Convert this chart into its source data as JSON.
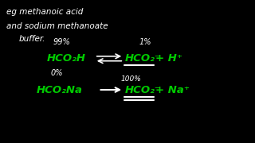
{
  "background_color": "#000000",
  "text_color_white": "#ffffff",
  "text_color_green": "#00cc00",
  "title_line1": "eg methanoic acid",
  "title_line2": "and sodium methanoate",
  "title_line3": "buffer.",
  "percent_99": "99%",
  "percent_0": "0%",
  "percent_1": "1%",
  "percent_100": "100%",
  "eq1_left": "HCO₂H",
  "eq1_right1": "HCO₂⁻",
  "eq1_right2": "+ H⁺",
  "eq2_left": "HCO₂Na",
  "eq2_right1": "HCO₂⁻",
  "eq2_right2": "+ Na⁺"
}
